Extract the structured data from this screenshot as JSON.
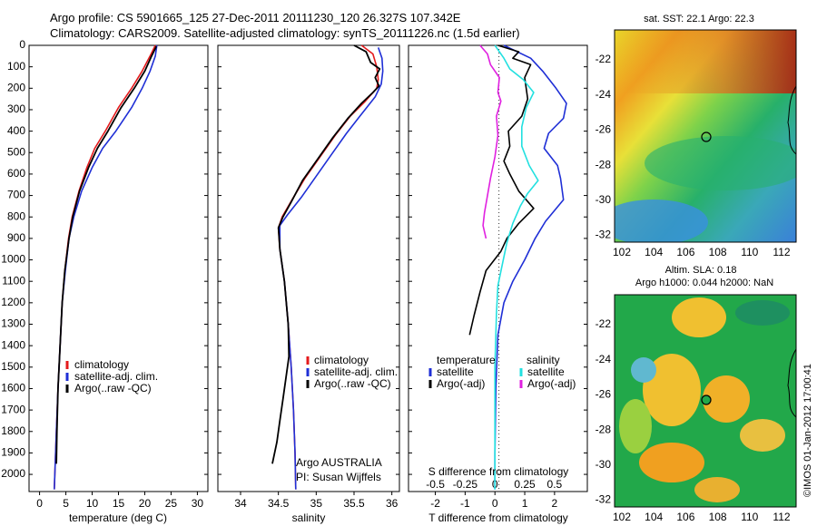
{
  "header": {
    "line1": "Argo profile: CS 5901665_125 27-Dec-2011 20111230_120 26.327S 107.342E",
    "line2": "Climatology: CARS2009. Satellite-adjusted climatology: synTS_20111226.nc (1.5d earlier)"
  },
  "colors": {
    "climatology": "#e41a1c",
    "satellite": "#1f2fd6",
    "argo": "#000000",
    "salinity_sat": "#22e0e0",
    "salinity_argo": "#e020e0"
  },
  "chart_data": [
    {
      "type": "line",
      "xlabel": "temperature (deg C)",
      "ylabel": "",
      "xlim": [
        -2,
        32
      ],
      "ylim": [
        2080,
        0
      ],
      "xticks": [
        0,
        5,
        10,
        15,
        20,
        25,
        30
      ],
      "yticks": [
        0,
        100,
        200,
        300,
        400,
        500,
        600,
        700,
        800,
        900,
        1000,
        1100,
        1200,
        1300,
        1400,
        1500,
        1600,
        1700,
        1800,
        1900,
        2000
      ],
      "legend": [
        "climatology",
        "satellite-adj. clim.",
        "Argo(..raw -QC)"
      ],
      "series": [
        {
          "name": "climatology",
          "color": "#e41a1c",
          "points": [
            [
              22,
              0
            ],
            [
              21,
              50
            ],
            [
              19.5,
              120
            ],
            [
              17.5,
              200
            ],
            [
              15,
              290
            ],
            [
              12.5,
              400
            ],
            [
              10.5,
              480
            ],
            [
              9,
              570
            ],
            [
              7.5,
              680
            ],
            [
              6.2,
              800
            ],
            [
              5.5,
              900
            ],
            [
              4.8,
              1050
            ],
            [
              4.3,
              1200
            ],
            [
              3.9,
              1400
            ],
            [
              3.5,
              1600
            ],
            [
              3.2,
              1800
            ],
            [
              2.9,
              2000
            ],
            [
              2.8,
              2070
            ]
          ]
        },
        {
          "name": "satellite-adj. clim.",
          "color": "#1f2fd6",
          "points": [
            [
              22.3,
              0
            ],
            [
              22,
              50
            ],
            [
              21,
              120
            ],
            [
              19.5,
              200
            ],
            [
              17.5,
              290
            ],
            [
              14.5,
              400
            ],
            [
              12,
              480
            ],
            [
              10,
              570
            ],
            [
              8,
              680
            ],
            [
              6.5,
              800
            ],
            [
              5.6,
              900
            ],
            [
              4.9,
              1050
            ],
            [
              4.3,
              1200
            ],
            [
              3.9,
              1400
            ],
            [
              3.5,
              1600
            ],
            [
              3.2,
              1800
            ],
            [
              2.9,
              2000
            ],
            [
              2.8,
              2070
            ]
          ]
        },
        {
          "name": "Argo(..raw -QC)",
          "color": "#000000",
          "points": [
            [
              22.2,
              5
            ],
            [
              21.3,
              50
            ],
            [
              20,
              120
            ],
            [
              18,
              200
            ],
            [
              15.5,
              290
            ],
            [
              13,
              400
            ],
            [
              11,
              480
            ],
            [
              9.3,
              570
            ],
            [
              7.6,
              680
            ],
            [
              6.3,
              800
            ],
            [
              5.6,
              900
            ],
            [
              4.8,
              1050
            ],
            [
              4.3,
              1200
            ],
            [
              3.9,
              1400
            ],
            [
              3.5,
              1600
            ],
            [
              3.3,
              1800
            ],
            [
              3.2,
              1950
            ]
          ]
        }
      ]
    },
    {
      "type": "line",
      "xlabel": "salinity",
      "ylabel": "",
      "xlim": [
        33.7,
        36.1
      ],
      "ylim": [
        2080,
        0
      ],
      "xticks": [
        34,
        34.5,
        35,
        35.5,
        36
      ],
      "legend": [
        "climatology",
        "satellite-adj. clim.",
        "Argo(..raw -QC)"
      ],
      "annotation": [
        "Argo AUSTRALIA",
        "PI: Susan Wijffels"
      ],
      "series": [
        {
          "name": "climatology",
          "color": "#e41a1c",
          "points": [
            [
              35.6,
              0
            ],
            [
              35.75,
              40
            ],
            [
              35.8,
              100
            ],
            [
              35.82,
              160
            ],
            [
              35.8,
              200
            ],
            [
              35.65,
              260
            ],
            [
              35.45,
              330
            ],
            [
              35.25,
              420
            ],
            [
              35.05,
              520
            ],
            [
              34.85,
              620
            ],
            [
              34.68,
              720
            ],
            [
              34.55,
              800
            ],
            [
              34.5,
              850
            ],
            [
              34.52,
              950
            ],
            [
              34.58,
              1100
            ],
            [
              34.63,
              1300
            ],
            [
              34.67,
              1500
            ],
            [
              34.7,
              1700
            ],
            [
              34.72,
              1900
            ],
            [
              34.73,
              2070
            ]
          ]
        },
        {
          "name": "satellite-adj. clim.",
          "color": "#1f2fd6",
          "points": [
            [
              35.82,
              10
            ],
            [
              35.87,
              60
            ],
            [
              35.88,
              120
            ],
            [
              35.86,
              180
            ],
            [
              35.78,
              240
            ],
            [
              35.6,
              320
            ],
            [
              35.4,
              410
            ],
            [
              35.2,
              510
            ],
            [
              35.0,
              610
            ],
            [
              34.8,
              710
            ],
            [
              34.62,
              790
            ],
            [
              34.52,
              840
            ],
            [
              34.52,
              950
            ],
            [
              34.58,
              1100
            ],
            [
              34.63,
              1300
            ],
            [
              34.67,
              1500
            ],
            [
              34.7,
              1700
            ],
            [
              34.72,
              1900
            ],
            [
              34.73,
              2070
            ]
          ]
        },
        {
          "name": "Argo(..raw -QC)",
          "color": "#000000",
          "points": [
            [
              35.5,
              0
            ],
            [
              35.66,
              30
            ],
            [
              35.72,
              80
            ],
            [
              35.84,
              110
            ],
            [
              35.78,
              150
            ],
            [
              35.83,
              190
            ],
            [
              35.75,
              220
            ],
            [
              35.6,
              270
            ],
            [
              35.42,
              340
            ],
            [
              35.22,
              430
            ],
            [
              35.02,
              530
            ],
            [
              34.82,
              630
            ],
            [
              34.67,
              730
            ],
            [
              34.56,
              800
            ],
            [
              34.5,
              850
            ],
            [
              34.52,
              950
            ],
            [
              34.58,
              1100
            ],
            [
              34.63,
              1300
            ],
            [
              34.64,
              1450
            ],
            [
              34.6,
              1550
            ],
            [
              34.56,
              1650
            ],
            [
              34.52,
              1750
            ],
            [
              34.48,
              1850
            ],
            [
              34.42,
              1950
            ]
          ]
        }
      ]
    },
    {
      "type": "line",
      "xlabel": "T difference from climatology",
      "xlabel_top": "S difference from climatology",
      "xlim": [
        -2.9,
        3.1
      ],
      "ylim": [
        2080,
        0
      ],
      "xticks": [
        -2,
        -1,
        0,
        1,
        2
      ],
      "xticks_top": [
        "-0.5",
        "-0.25",
        "0",
        "0.25",
        "0.5"
      ],
      "legend_left": [
        "temperature",
        "satellite",
        "Argo(-adj)"
      ],
      "legend_right": [
        "salinity",
        "satellite",
        "Argo(-adj)"
      ],
      "series": [
        {
          "name": "temperature satellite",
          "color": "#1f2fd6",
          "points": [
            [
              0.3,
              0
            ],
            [
              1.2,
              60
            ],
            [
              1.6,
              120
            ],
            [
              2.05,
              200
            ],
            [
              2.4,
              270
            ],
            [
              2.3,
              340
            ],
            [
              1.8,
              410
            ],
            [
              1.65,
              480
            ],
            [
              2.1,
              560
            ],
            [
              2.2,
              620
            ],
            [
              2.3,
              720
            ],
            [
              1.7,
              820
            ],
            [
              1.35,
              900
            ],
            [
              1.0,
              1000
            ],
            [
              0.6,
              1100
            ],
            [
              0.3,
              1200
            ],
            [
              0.1,
              1350
            ],
            [
              0.03,
              1600
            ],
            [
              0.0,
              1900
            ],
            [
              0.0,
              2070
            ]
          ]
        },
        {
          "name": "temperature Argo(-adj)",
          "color": "#000000",
          "points": [
            [
              0.1,
              0
            ],
            [
              0.8,
              30
            ],
            [
              0.6,
              60
            ],
            [
              1.2,
              90
            ],
            [
              1.0,
              150
            ],
            [
              1.1,
              250
            ],
            [
              0.9,
              330
            ],
            [
              0.45,
              400
            ],
            [
              0.5,
              470
            ],
            [
              0.3,
              540
            ],
            [
              0.5,
              600
            ],
            [
              0.8,
              680
            ],
            [
              1.3,
              760
            ],
            [
              0.8,
              830
            ],
            [
              0.4,
              900
            ],
            [
              0.2,
              960
            ],
            [
              -0.3,
              1050
            ],
            [
              -0.5,
              1150
            ],
            [
              -0.7,
              1260
            ],
            [
              -0.85,
              1350
            ]
          ]
        },
        {
          "name": "salinity satellite",
          "color": "#22e0e0",
          "points": [
            [
              0.0,
              0
            ],
            [
              0.3,
              60
            ],
            [
              0.5,
              110
            ],
            [
              0.95,
              160
            ],
            [
              1.3,
              220
            ],
            [
              1.05,
              290
            ],
            [
              0.9,
              380
            ],
            [
              0.9,
              470
            ],
            [
              1.15,
              560
            ],
            [
              1.45,
              630
            ],
            [
              1.1,
              690
            ],
            [
              0.85,
              750
            ],
            [
              0.6,
              830
            ],
            [
              0.4,
              920
            ],
            [
              0.25,
              1020
            ],
            [
              0.1,
              1120
            ],
            [
              0.05,
              1250
            ],
            [
              0.0,
              1500
            ],
            [
              0.0,
              2070
            ]
          ]
        },
        {
          "name": "salinity Argo(-adj)",
          "color": "#e020e0",
          "points": [
            [
              -0.5,
              0
            ],
            [
              -0.25,
              40
            ],
            [
              -0.15,
              90
            ],
            [
              0.15,
              150
            ],
            [
              0.1,
              220
            ],
            [
              0.2,
              260
            ],
            [
              0.05,
              330
            ],
            [
              0.1,
              420
            ],
            [
              0.0,
              520
            ],
            [
              -0.15,
              620
            ],
            [
              -0.25,
              700
            ],
            [
              -0.35,
              780
            ],
            [
              -0.4,
              840
            ],
            [
              -0.3,
              900
            ]
          ]
        }
      ]
    }
  ],
  "map_sst": {
    "title": "sat. SST: 22.1  Argo: 22.3",
    "xticks": [
      "102",
      "104",
      "106",
      "108",
      "110",
      "112"
    ],
    "yticks": [
      "-22",
      "-24",
      "-26",
      "-28",
      "-30",
      "-32"
    ]
  },
  "map_sla": {
    "title1": "Altim. SLA: 0.18",
    "title2": "Argo h1000: 0.044  h2000: NaN",
    "xticks": [
      "102",
      "104",
      "106",
      "108",
      "110",
      "112"
    ],
    "yticks": [
      "-22",
      "-24",
      "-26",
      "-28",
      "-30",
      "-32"
    ]
  },
  "footer_vertical": "©IMOS 01-Jan-2012 17:00:41"
}
